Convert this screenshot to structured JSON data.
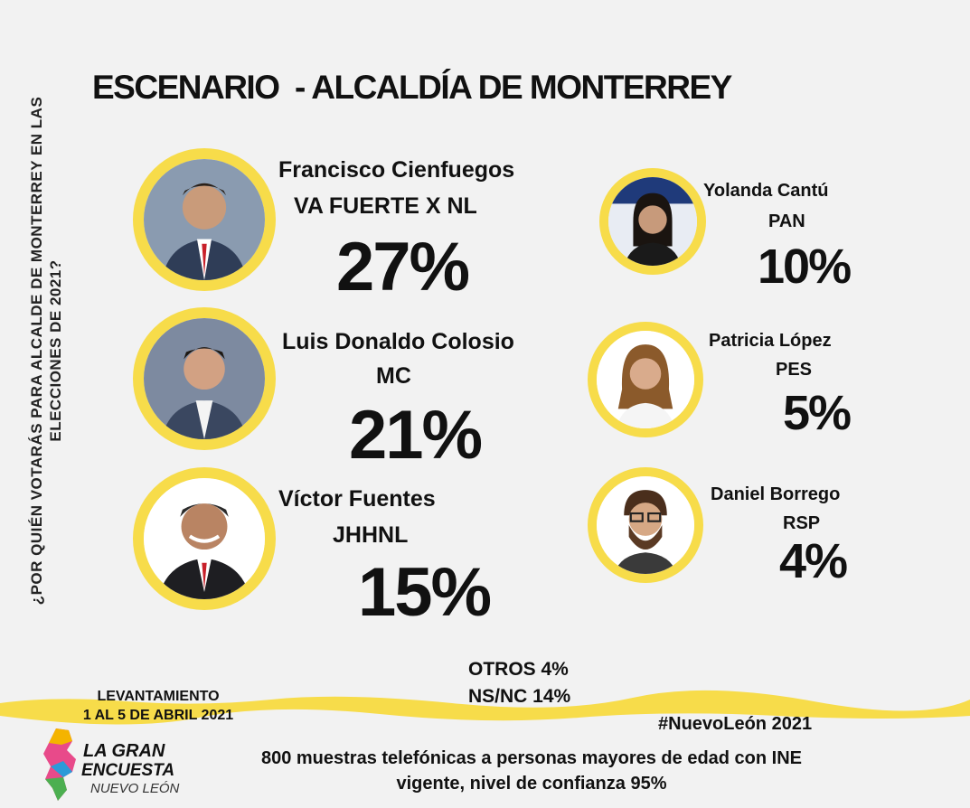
{
  "title": "ESCENARIO  - ALCALDÍA DE MONTERREY",
  "side_question": "¿POR QUIÉN VOTARÁS PARA ALCALDE DE MONTERREY EN LAS ELECCIONES DE 2021?",
  "candidates": [
    {
      "name": "Francisco Cienfuegos",
      "party": "VA FUERTE X NL",
      "percent": "27%"
    },
    {
      "name": "Luis Donaldo Colosio",
      "party": "MC",
      "percent": "21%"
    },
    {
      "name": "Víctor Fuentes",
      "party": "JHHNL",
      "percent": "15%"
    },
    {
      "name": "Yolanda Cantú",
      "party": "PAN",
      "percent": "10%"
    },
    {
      "name": "Patricia López",
      "party": "PES",
      "percent": "5%"
    },
    {
      "name": "Daniel Borrego",
      "party": "RSP",
      "percent": "4%"
    }
  ],
  "others": "OTROS 4%",
  "nsnc": "NS/NC 14%",
  "levantamiento": {
    "label": "LEVANTAMIENTO",
    "dates": "1 AL 5 DE ABRIL  2021"
  },
  "hashtag": "#NuevoLeón 2021",
  "methodology": "800 muestras telefónicas a personas mayores de edad con INE vigente, nivel de confianza 95%",
  "logo": {
    "line1": "LA GRAN",
    "line2": "ENCUESTA",
    "line3": "NUEVO LEÓN"
  },
  "colors": {
    "accent_yellow": "#f7dc4a",
    "background": "#f2f2f2",
    "text": "#111111"
  }
}
